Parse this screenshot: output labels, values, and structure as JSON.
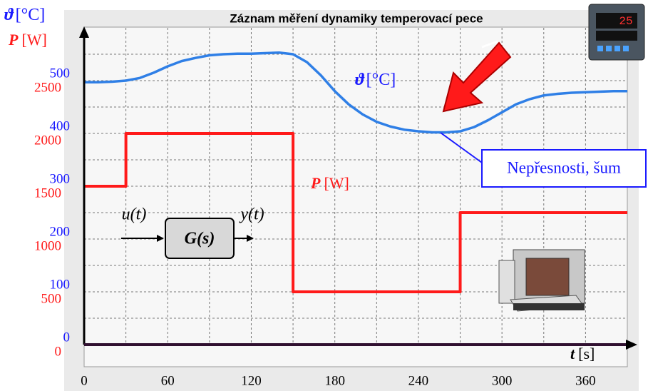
{
  "chart_data": {
    "type": "line",
    "title": "Záznam  měření dynamiky temperovací pece",
    "y_label": {
      "symbol": "ϑ",
      "unit": "[°C]"
    },
    "y2_label": {
      "symbol": "P",
      "unit": "[W]"
    },
    "x_label": {
      "symbol": "t",
      "unit": "[s]"
    },
    "x": [
      0,
      10,
      20,
      30,
      40,
      50,
      60,
      70,
      80,
      90,
      100,
      110,
      120,
      130,
      140,
      150,
      160,
      170,
      180,
      190,
      200,
      210,
      220,
      230,
      240,
      250,
      260,
      270,
      280,
      290,
      300,
      310,
      320,
      330,
      340,
      350,
      360,
      370,
      380,
      390
    ],
    "series": [
      {
        "name": "ϑ [°C]",
        "color": "#2f7fe6",
        "values": [
          497,
          497,
          498,
          500,
          505,
          515,
          527,
          537,
          543,
          548,
          550,
          551,
          551,
          552,
          553,
          550,
          535,
          510,
          480,
          455,
          436,
          422,
          413,
          407,
          404,
          402,
          402,
          404,
          412,
          425,
          440,
          455,
          465,
          472,
          475,
          477,
          478,
          479,
          480,
          480
        ]
      },
      {
        "name": "P [W]",
        "color": "#ff1a1a",
        "axis": "y2",
        "step": true,
        "x": [
          0,
          30,
          150,
          270,
          390
        ],
        "values": [
          1500,
          2000,
          500,
          1250,
          1250
        ]
      }
    ],
    "xlim": [
      0,
      390
    ],
    "xticks": [
      0,
      60,
      120,
      180,
      240,
      300,
      360
    ],
    "ylim": [
      0,
      600
    ],
    "yticks": [
      0,
      100,
      200,
      300,
      400,
      500
    ],
    "y2lim": [
      0,
      3000
    ],
    "y2ticks": [
      0,
      500,
      1000,
      1500,
      2000,
      2500
    ],
    "xgrid": [
      30,
      60,
      90,
      120,
      150,
      180,
      210,
      240,
      270,
      300,
      330,
      360
    ],
    "ygrid": [
      50,
      100,
      150,
      200,
      250,
      300,
      350,
      400,
      450,
      500,
      550
    ],
    "annotations": {
      "temp": {
        "symbol": "ϑ",
        "unit": "[°C]"
      },
      "power": {
        "symbol": "P",
        "unit": "[W]"
      },
      "noise": "Nepřesnosti, šum",
      "block": {
        "input": "u(t)",
        "output": "y(t)",
        "transfer": "G(s)"
      }
    }
  }
}
